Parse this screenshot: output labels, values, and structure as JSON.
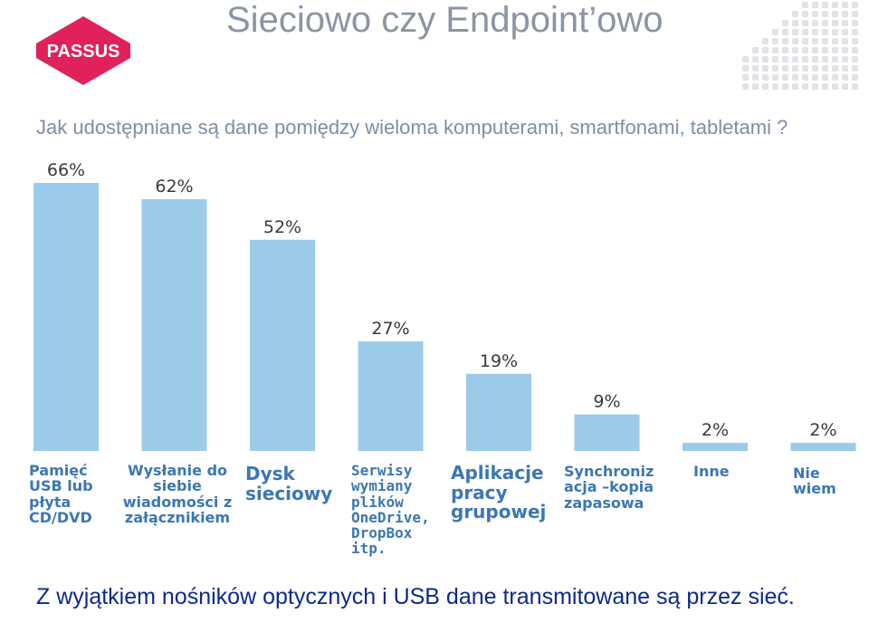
{
  "title": "Sieciowo czy Endpoint’owo",
  "logo_text": "PASSUS",
  "question": "Jak udostępniane są dane pomiędzy wieloma komputerami, smartfonami, tabletami ?",
  "footer": "Z wyjątkiem nośników optycznych i USB dane transmitowane są przez sieć.",
  "colors": {
    "bar": "#9ccbea",
    "category_text": "#3b77b2",
    "title": "#8a95a3",
    "footer": "#0b2a8a",
    "logo": "#e0215a"
  },
  "chart_data": {
    "type": "bar",
    "categories": [
      "Pamięć USB lub płyta CD/DVD",
      "Wysłanie do siebie wiadomości z załącznikiem",
      "Dysk sieciowy",
      "Serwisy wymiany plików OneDrive, DropBox itp.",
      "Aplikacje pracy grupowej",
      "Synchroniz acja –kopia zapasowa",
      "Inne",
      "Nie wiem"
    ],
    "category_lines": [
      [
        "Pamięć",
        "USB lub",
        "płyta",
        "CD/DVD"
      ],
      [
        "Wysłanie do",
        "siebie",
        "wiadomości z",
        "załącznikiem"
      ],
      [
        "Dysk",
        "sieciowy"
      ],
      [
        "Serwisy",
        "wymiany",
        "plików",
        "OneDrive,",
        "DropBox",
        "itp."
      ],
      [
        "Aplikacje",
        "pracy",
        "grupowej"
      ],
      [
        "Synchroniz",
        "acja –kopia",
        "zapasowa"
      ],
      [
        "Inne"
      ],
      [
        "Nie",
        "wiem"
      ]
    ],
    "values": [
      66,
      62,
      52,
      27,
      19,
      9,
      2,
      2
    ],
    "data_labels": [
      "66%",
      "62%",
      "52%",
      "27%",
      "19%",
      "9%",
      "2%",
      "2%"
    ],
    "ylim": [
      0,
      66
    ],
    "grid": false
  }
}
